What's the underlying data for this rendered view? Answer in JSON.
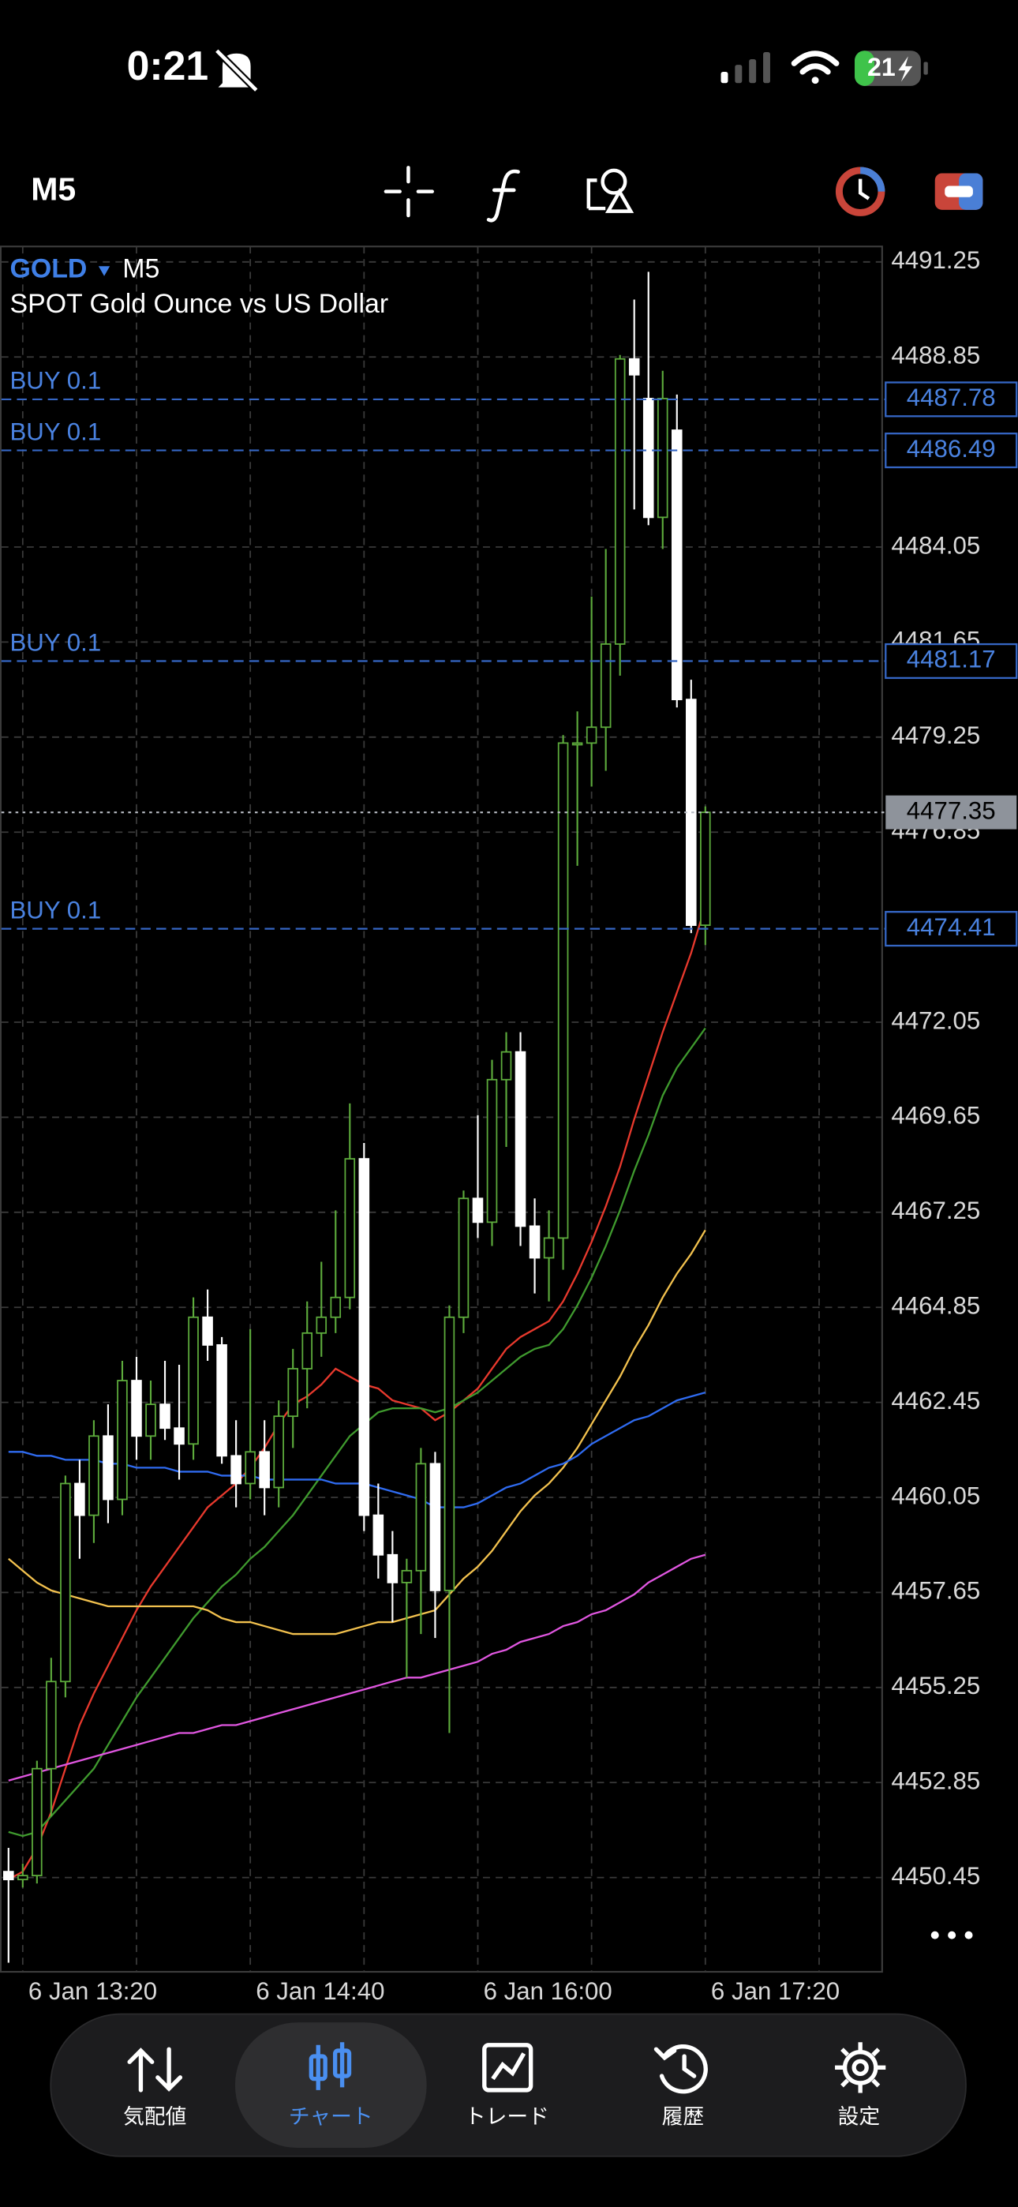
{
  "status_bar": {
    "time": "0:21",
    "battery": "21"
  },
  "toolbar": {
    "timeframe": "M5"
  },
  "chart_data": {
    "type": "candlestick",
    "symbol": "GOLD",
    "timeframe": "M5",
    "description": "SPOT Gold Ounce vs US Dollar",
    "categories": [
      null,
      "6 Jan 13:20",
      null,
      null,
      null,
      null,
      null,
      null,
      null,
      null,
      null,
      null,
      null,
      null,
      null,
      null,
      null,
      "6 Jan 14:40",
      null,
      null,
      null,
      null,
      null,
      null,
      null,
      null,
      null,
      null,
      null,
      null,
      null,
      null,
      null,
      "6 Jan 16:00",
      null,
      null,
      null,
      null,
      null,
      null,
      null,
      null,
      null,
      null,
      null,
      null,
      null,
      null,
      null,
      "6 Jan 17:20"
    ],
    "open": [
      4450.6,
      4450.4,
      4450.5,
      4453.2,
      4455.4,
      4460.4,
      4459.6,
      4461.6,
      4460.0,
      4463.0,
      4461.6,
      4462.4,
      4461.8,
      4461.4,
      4464.6,
      4463.9,
      4461.1,
      4460.4,
      4461.2,
      4460.3,
      4462.1,
      4463.3,
      4464.2,
      4464.6,
      4465.1,
      4468.6,
      4459.6,
      4458.6,
      4457.9,
      4458.2,
      4460.9,
      4457.7,
      4464.6,
      4467.6,
      4467.0,
      4470.6,
      4471.3,
      4466.9,
      4466.1,
      4466.6,
      4479.1,
      4479.1,
      4479.5,
      4481.6,
      4488.8,
      4487.8,
      4484.8,
      4487.0,
      4480.2,
      4474.5
    ],
    "high": [
      4451.2,
      4450.8,
      4453.4,
      4456.0,
      4460.6,
      4461.0,
      4462.0,
      4462.4,
      4463.5,
      4463.6,
      4463.0,
      4463.5,
      4463.4,
      4465.1,
      4465.3,
      4464.1,
      4462.0,
      4464.3,
      4462.0,
      4462.5,
      4463.8,
      4465.0,
      4466.0,
      4467.3,
      4470.0,
      4469.0,
      4460.4,
      4459.2,
      4458.5,
      4461.3,
      4461.2,
      4464.9,
      4467.8,
      4469.7,
      4471.1,
      4471.8,
      4471.8,
      4467.6,
      4467.3,
      4479.3,
      4479.9,
      4482.8,
      4484.0,
      4488.9,
      4490.3,
      4491.0,
      4488.5,
      4487.9,
      4480.7,
      4477.5
    ],
    "low": [
      4448.3,
      4450.2,
      4450.3,
      4452.0,
      4455.0,
      4458.5,
      4458.9,
      4459.4,
      4459.6,
      4461.0,
      4461.0,
      4461.5,
      4460.5,
      4461.0,
      4463.5,
      4460.9,
      4459.8,
      4460.0,
      4459.6,
      4459.8,
      4461.3,
      4462.3,
      4463.6,
      4464.2,
      4464.8,
      4459.2,
      4458.0,
      4456.9,
      4455.5,
      4456.6,
      4456.5,
      4454.1,
      4464.2,
      4466.6,
      4466.4,
      4468.9,
      4466.4,
      4465.2,
      4465.0,
      4465.8,
      4476.0,
      4478.0,
      4478.4,
      4480.8,
      4485.0,
      4484.6,
      4484.0,
      4480.0,
      4474.3,
      4474.0
    ],
    "close": [
      4450.4,
      4450.5,
      4453.2,
      4455.4,
      4460.4,
      4459.6,
      4461.6,
      4460.0,
      4463.0,
      4461.6,
      4462.4,
      4461.8,
      4461.4,
      4464.6,
      4463.9,
      4461.1,
      4460.4,
      4461.2,
      4460.3,
      4462.1,
      4463.3,
      4464.2,
      4464.6,
      4465.1,
      4468.6,
      4459.6,
      4458.6,
      4457.9,
      4458.2,
      4460.9,
      4457.7,
      4464.6,
      4467.6,
      4467.0,
      4470.6,
      4471.3,
      4466.9,
      4466.1,
      4466.6,
      4479.1,
      4479.1,
      4479.5,
      4481.6,
      4488.8,
      4488.4,
      4484.8,
      4487.8,
      4480.2,
      4474.5,
      4477.35
    ],
    "up_color": "#5dab3c",
    "down_color": "#ffffff",
    "series": [
      {
        "color": "#e8392d",
        "values": [
          4450.4,
          4450.6,
          4451.2,
          4452.1,
          4453.2,
          4454.3,
          4455.1,
          4455.8,
          4456.5,
          4457.2,
          4457.8,
          4458.3,
          4458.8,
          4459.3,
          4459.8,
          4460.1,
          4460.4,
          4460.8,
          4461.3,
          4461.9,
          4462.4,
          4462.6,
          4462.9,
          4463.3,
          4463.1,
          4462.9,
          4462.8,
          4462.5,
          4462.4,
          4462.3,
          4462.0,
          4462.2,
          4462.5,
          4462.8,
          4463.3,
          4463.8,
          4464.1,
          4464.3,
          4464.5,
          4465.0,
          4465.7,
          4466.5,
          4467.4,
          4468.4,
          4469.6,
          4470.7,
          4471.8,
          4472.8,
          4473.8,
          4475.0
        ]
      },
      {
        "color": "#3f9a2e",
        "values": [
          4451.6,
          4451.5,
          4451.6,
          4452.0,
          4452.4,
          4452.8,
          4453.2,
          4453.8,
          4454.4,
          4455.0,
          4455.5,
          4456.0,
          4456.5,
          4457.0,
          4457.4,
          4457.8,
          4458.1,
          4458.5,
          4458.8,
          4459.2,
          4459.6,
          4460.1,
          4460.6,
          4461.1,
          4461.6,
          4461.9,
          4462.2,
          4462.3,
          4462.3,
          4462.3,
          4462.2,
          4462.3,
          4462.5,
          4462.7,
          4463.0,
          4463.3,
          4463.6,
          4463.8,
          4463.9,
          4464.3,
          4464.9,
          4465.6,
          4466.4,
          4467.3,
          4468.3,
          4469.2,
          4470.2,
          4470.9,
          4471.4,
          4471.9
        ]
      },
      {
        "color": "#f2c14e",
        "values": [
          4458.5,
          4458.2,
          4457.9,
          4457.7,
          4457.6,
          4457.5,
          4457.4,
          4457.3,
          4457.3,
          4457.3,
          4457.3,
          4457.3,
          4457.3,
          4457.3,
          4457.2,
          4457.0,
          4456.9,
          4456.9,
          4456.8,
          4456.7,
          4456.6,
          4456.6,
          4456.6,
          4456.6,
          4456.7,
          4456.8,
          4456.9,
          4456.9,
          4457.0,
          4457.1,
          4457.2,
          4457.6,
          4458.0,
          4458.3,
          4458.7,
          4459.2,
          4459.7,
          4460.1,
          4460.4,
          4460.8,
          4461.3,
          4461.9,
          4462.5,
          4463.1,
          4463.8,
          4464.4,
          4465.1,
          4465.7,
          4466.2,
          4466.8
        ]
      },
      {
        "color": "#2f6bf0",
        "values": [
          4461.2,
          4461.2,
          4461.1,
          4461.1,
          4461.0,
          4461.0,
          4461.0,
          4460.9,
          4460.9,
          4460.8,
          4460.8,
          4460.8,
          4460.7,
          4460.7,
          4460.7,
          4460.6,
          4460.6,
          4460.6,
          4460.5,
          4460.5,
          4460.5,
          4460.5,
          4460.5,
          4460.4,
          4460.4,
          4460.4,
          4460.3,
          4460.2,
          4460.1,
          4460.0,
          4459.8,
          4459.8,
          4459.8,
          4459.9,
          4460.1,
          4460.3,
          4460.4,
          4460.6,
          4460.8,
          4460.9,
          4461.1,
          4461.4,
          4461.6,
          4461.8,
          4462.0,
          4462.1,
          4462.3,
          4462.5,
          4462.6,
          4462.7
        ]
      },
      {
        "color": "#e056e0",
        "values": [
          4452.9,
          4453.0,
          4453.1,
          4453.2,
          4453.3,
          4453.4,
          4453.5,
          4453.6,
          4453.7,
          4453.8,
          4453.9,
          4454.0,
          4454.1,
          4454.1,
          4454.2,
          4454.3,
          4454.3,
          4454.4,
          4454.5,
          4454.6,
          4454.7,
          4454.8,
          4454.9,
          4455.0,
          4455.1,
          4455.2,
          4455.3,
          4455.4,
          4455.5,
          4455.5,
          4455.6,
          4455.7,
          4455.8,
          4455.9,
          4456.1,
          4456.2,
          4456.4,
          4456.5,
          4456.6,
          4456.8,
          4456.9,
          4457.1,
          4457.2,
          4457.4,
          4457.6,
          4457.9,
          4458.1,
          4458.3,
          4458.5,
          4458.6
        ]
      }
    ],
    "ylim": [
      4448.07,
      4491.64
    ],
    "yticks": [
      4491.25,
      4488.85,
      4484.05,
      4481.65,
      4479.25,
      4476.85,
      4472.05,
      4469.65,
      4467.25,
      4464.85,
      4462.45,
      4460.05,
      4457.65,
      4455.25,
      4452.85,
      4450.45
    ],
    "grid": true,
    "orders": [
      {
        "label": "BUY 0.1",
        "price": 4487.78
      },
      {
        "label": "BUY 0.1",
        "price": 4486.49
      },
      {
        "label": "BUY 0.1",
        "price": 4481.17
      },
      {
        "label": "BUY 0.1",
        "price": 4474.41
      }
    ],
    "last_price": 4477.35
  },
  "nav": {
    "items": [
      {
        "label": "気配値",
        "active": false
      },
      {
        "label": "チャート",
        "active": true
      },
      {
        "label": "トレード",
        "active": false
      },
      {
        "label": "履歴",
        "active": false
      },
      {
        "label": "設定",
        "active": false
      }
    ]
  }
}
